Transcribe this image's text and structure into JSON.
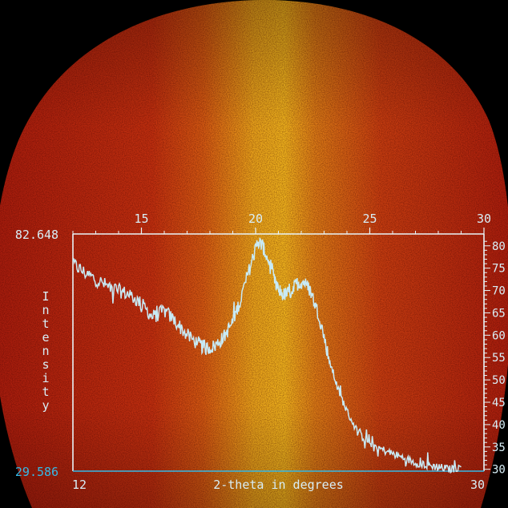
{
  "chart_data": {
    "type": "line",
    "xlabel": "2-theta in degrees",
    "ylabel": "Intensity",
    "xlim": [
      12,
      30
    ],
    "ylim": [
      29.586,
      82.648
    ],
    "x_ticks_top": [
      "15",
      "20",
      "25",
      "30"
    ],
    "x_ticks_top_values": [
      15,
      20,
      25,
      30
    ],
    "x_end_labels": [
      "12",
      "30"
    ],
    "y_ticks_right": [
      "30",
      "35",
      "40",
      "45",
      "50",
      "55",
      "60",
      "65",
      "70",
      "75",
      "80"
    ],
    "y_ticks_right_values": [
      30,
      35,
      40,
      45,
      50,
      55,
      60,
      65,
      70,
      75,
      80
    ],
    "y_min_label": "29.586",
    "y_max_label": "82.648",
    "grid": false,
    "series": [
      {
        "x": [
          12.0,
          12.5,
          13.0,
          13.5,
          14.0,
          14.5,
          15.0,
          15.5,
          16.0,
          16.5,
          17.0,
          17.5,
          17.8,
          18.2,
          18.6,
          19.0,
          19.4,
          19.8,
          20.1,
          20.3,
          20.6,
          20.9,
          21.2,
          21.5,
          21.8,
          22.1,
          22.4,
          22.8,
          23.2,
          23.6,
          24.0,
          24.5,
          25.0,
          25.5,
          26.0,
          26.5,
          27.0,
          27.5,
          28.0,
          28.5,
          29.0
        ],
        "values": [
          76,
          74,
          72.5,
          71,
          70,
          69,
          67,
          64,
          65.5,
          63,
          60,
          58,
          57,
          57.5,
          59.5,
          63,
          69,
          76,
          81,
          80,
          76,
          71,
          69,
          69.5,
          71.5,
          72,
          70,
          64,
          55,
          48,
          43,
          38,
          36,
          34.5,
          33.5,
          32.5,
          31.5,
          31,
          30.5,
          30,
          30.5
        ]
      }
    ],
    "colors": {
      "trace": "#c8eaf5",
      "axis": "#e8f4f8",
      "label": "#d8eef6",
      "cyan": "#35b8e6"
    }
  }
}
